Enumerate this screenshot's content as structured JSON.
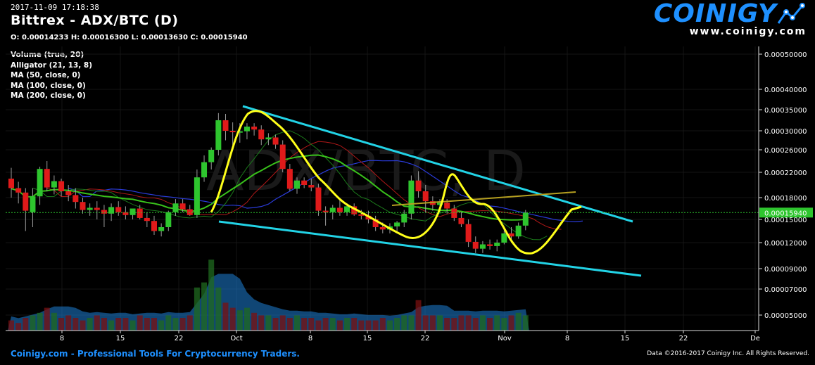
{
  "header": {
    "timestamp": "2017-11-09 17:18:38",
    "pair_title": "Bittrex - ADX/BTC (D)",
    "ohlc": "O: 0.00014233 H: 0.00016300 L: 0.00013630 C: 0.00015940",
    "indicators": [
      "Volume (true, 20)",
      "Alligator (21, 13, 8)",
      "MA (50, close, 0)",
      "MA (100, close, 0)",
      "MA (200, close, 0)"
    ]
  },
  "logo": {
    "word": "COINIGY",
    "url": "www.coinigy.com",
    "icon": "line-chart-icon"
  },
  "footer": {
    "left": "Coinigy.com - Professional Tools For Cryptocurrency Traders.",
    "right": "Data ©2016-2017 Coinigy Inc. All Rights Reserved."
  },
  "watermark": "ADX/BTC, D",
  "colors": {
    "up": "#2ec52e",
    "down": "#e01a1a",
    "trendline": "#22d3e6",
    "path": "#ffff1a",
    "ma50": "#39c21b",
    "ma100": "#2a3bd9",
    "ma200": "#b6a020",
    "price_label_bg": "#2ec52e",
    "volume_area": "#1e7fd6"
  },
  "chart_data": {
    "type": "candlestick",
    "y_ticks": [
      "0.00050000",
      "0.00040000",
      "0.00035000",
      "0.00030000",
      "0.00026000",
      "0.00022000",
      "0.00018000",
      "0.00015000",
      "0.00012000",
      "0.00009000",
      "0.00007000",
      "0.00005000"
    ],
    "x_ticks": [
      "8",
      "15",
      "22",
      "Oct",
      "8",
      "15",
      "22",
      "Nov",
      "8",
      "15",
      "22",
      "De"
    ],
    "last_price": "0.00015940",
    "candles": [
      {
        "o": 0.00021,
        "h": 0.000228,
        "l": 0.00018,
        "c": 0.000195
      },
      {
        "o": 0.000195,
        "h": 0.000205,
        "l": 0.000172,
        "c": 0.000188
      },
      {
        "o": 0.000188,
        "h": 0.000195,
        "l": 0.000135,
        "c": 0.000162
      },
      {
        "o": 0.00016,
        "h": 0.000195,
        "l": 0.00014,
        "c": 0.000182
      },
      {
        "o": 0.000182,
        "h": 0.00023,
        "l": 0.00017,
        "c": 0.000226
      },
      {
        "o": 0.000226,
        "h": 0.00024,
        "l": 0.00019,
        "c": 0.000196
      },
      {
        "o": 0.000196,
        "h": 0.000215,
        "l": 0.000185,
        "c": 0.000206
      },
      {
        "o": 0.000206,
        "h": 0.00021,
        "l": 0.000182,
        "c": 0.00019
      },
      {
        "o": 0.00019,
        "h": 0.0002,
        "l": 0.000175,
        "c": 0.000184
      },
      {
        "o": 0.000184,
        "h": 0.000195,
        "l": 0.000165,
        "c": 0.000174
      },
      {
        "o": 0.000174,
        "h": 0.00018,
        "l": 0.000158,
        "c": 0.000163
      },
      {
        "o": 0.000163,
        "h": 0.000172,
        "l": 0.000155,
        "c": 0.000166
      },
      {
        "o": 0.000166,
        "h": 0.000175,
        "l": 0.00015,
        "c": 0.000163
      },
      {
        "o": 0.000163,
        "h": 0.00017,
        "l": 0.00014,
        "c": 0.000158
      },
      {
        "o": 0.000158,
        "h": 0.000172,
        "l": 0.000148,
        "c": 0.000167
      },
      {
        "o": 0.000167,
        "h": 0.000175,
        "l": 0.000155,
        "c": 0.00016
      },
      {
        "o": 0.00016,
        "h": 0.000168,
        "l": 0.00015,
        "c": 0.000156
      },
      {
        "o": 0.000156,
        "h": 0.000165,
        "l": 0.00015,
        "c": 0.000165
      },
      {
        "o": 0.000165,
        "h": 0.00017,
        "l": 0.00015,
        "c": 0.000152
      },
      {
        "o": 0.000152,
        "h": 0.00016,
        "l": 0.00014,
        "c": 0.000148
      },
      {
        "o": 0.000148,
        "h": 0.000155,
        "l": 0.00013,
        "c": 0.000135
      },
      {
        "o": 0.000135,
        "h": 0.000145,
        "l": 0.000128,
        "c": 0.00014
      },
      {
        "o": 0.00014,
        "h": 0.000162,
        "l": 0.000135,
        "c": 0.00016
      },
      {
        "o": 0.00016,
        "h": 0.000178,
        "l": 0.000155,
        "c": 0.000172
      },
      {
        "o": 0.000172,
        "h": 0.000178,
        "l": 0.00016,
        "c": 0.000164
      },
      {
        "o": 0.000164,
        "h": 0.00017,
        "l": 0.000155,
        "c": 0.000156
      },
      {
        "o": 0.000156,
        "h": 0.000225,
        "l": 0.000152,
        "c": 0.000212
      },
      {
        "o": 0.000212,
        "h": 0.00025,
        "l": 0.000205,
        "c": 0.000238
      },
      {
        "o": 0.000238,
        "h": 0.000265,
        "l": 0.000225,
        "c": 0.00026
      },
      {
        "o": 0.00026,
        "h": 0.000342,
        "l": 0.00025,
        "c": 0.000325
      },
      {
        "o": 0.000325,
        "h": 0.00034,
        "l": 0.00028,
        "c": 0.0003
      },
      {
        "o": 0.0003,
        "h": 0.00032,
        "l": 0.00027,
        "c": 0.000297
      },
      {
        "o": 0.000297,
        "h": 0.000318,
        "l": 0.000275,
        "c": 0.000299
      },
      {
        "o": 0.000299,
        "h": 0.000318,
        "l": 0.000282,
        "c": 0.00031
      },
      {
        "o": 0.00031,
        "h": 0.000318,
        "l": 0.00029,
        "c": 0.000303
      },
      {
        "o": 0.000303,
        "h": 0.000313,
        "l": 0.00027,
        "c": 0.000282
      },
      {
        "o": 0.000282,
        "h": 0.000295,
        "l": 0.00027,
        "c": 0.000286
      },
      {
        "o": 0.000286,
        "h": 0.000292,
        "l": 0.000262,
        "c": 0.000271
      },
      {
        "o": 0.000271,
        "h": 0.00028,
        "l": 0.00022,
        "c": 0.000226
      },
      {
        "o": 0.000226,
        "h": 0.000235,
        "l": 0.00019,
        "c": 0.000194
      },
      {
        "o": 0.000194,
        "h": 0.000212,
        "l": 0.000186,
        "c": 0.000207
      },
      {
        "o": 0.000207,
        "h": 0.000212,
        "l": 0.000195,
        "c": 0.0002
      },
      {
        "o": 0.0002,
        "h": 0.00021,
        "l": 0.00019,
        "c": 0.000196
      },
      {
        "o": 0.000196,
        "h": 0.000202,
        "l": 0.000155,
        "c": 0.000162
      },
      {
        "o": 0.000162,
        "h": 0.000168,
        "l": 0.000142,
        "c": 0.00016
      },
      {
        "o": 0.00016,
        "h": 0.00017,
        "l": 0.00015,
        "c": 0.000166
      },
      {
        "o": 0.000166,
        "h": 0.000178,
        "l": 0.000155,
        "c": 0.00016
      },
      {
        "o": 0.00016,
        "h": 0.000172,
        "l": 0.000155,
        "c": 0.000168
      },
      {
        "o": 0.000168,
        "h": 0.000172,
        "l": 0.000155,
        "c": 0.000157
      },
      {
        "o": 0.000157,
        "h": 0.000163,
        "l": 0.00015,
        "c": 0.000155
      },
      {
        "o": 0.000155,
        "h": 0.000162,
        "l": 0.000145,
        "c": 0.00015
      },
      {
        "o": 0.00015,
        "h": 0.000155,
        "l": 0.000135,
        "c": 0.00014
      },
      {
        "o": 0.00014,
        "h": 0.000146,
        "l": 0.000132,
        "c": 0.000137
      },
      {
        "o": 0.000137,
        "h": 0.000145,
        "l": 0.000132,
        "c": 0.000141
      },
      {
        "o": 0.000141,
        "h": 0.000148,
        "l": 0.000135,
        "c": 0.000146
      },
      {
        "o": 0.000146,
        "h": 0.000163,
        "l": 0.00014,
        "c": 0.000158
      },
      {
        "o": 0.000158,
        "h": 0.000215,
        "l": 0.00015,
        "c": 0.000207
      },
      {
        "o": 0.000207,
        "h": 0.000222,
        "l": 0.00018,
        "c": 0.00019
      },
      {
        "o": 0.00019,
        "h": 0.0002,
        "l": 0.00016,
        "c": 0.000175
      },
      {
        "o": 0.000175,
        "h": 0.000182,
        "l": 0.000162,
        "c": 0.00017
      },
      {
        "o": 0.00017,
        "h": 0.000178,
        "l": 0.00016,
        "c": 0.000173
      },
      {
        "o": 0.000173,
        "h": 0.000178,
        "l": 0.000158,
        "c": 0.000165
      },
      {
        "o": 0.000165,
        "h": 0.00017,
        "l": 0.000148,
        "c": 0.000152
      },
      {
        "o": 0.000152,
        "h": 0.00016,
        "l": 0.00014,
        "c": 0.000144
      },
      {
        "o": 0.000144,
        "h": 0.00015,
        "l": 0.000115,
        "c": 0.000121
      },
      {
        "o": 0.000121,
        "h": 0.000128,
        "l": 0.000108,
        "c": 0.000113
      },
      {
        "o": 0.000113,
        "h": 0.000122,
        "l": 0.000108,
        "c": 0.000118
      },
      {
        "o": 0.000118,
        "h": 0.000124,
        "l": 0.000112,
        "c": 0.000116
      },
      {
        "o": 0.000116,
        "h": 0.000124,
        "l": 0.00011,
        "c": 0.00012
      },
      {
        "o": 0.00012,
        "h": 0.000136,
        "l": 0.000118,
        "c": 0.000132
      },
      {
        "o": 0.000132,
        "h": 0.00014,
        "l": 0.00012,
        "c": 0.000128
      },
      {
        "o": 0.000128,
        "h": 0.000146,
        "l": 0.000125,
        "c": 0.000142
      },
      {
        "o": 0.000142,
        "h": 0.000163,
        "l": 0.000136,
        "c": 0.000159
      }
    ],
    "volume": [
      0.4,
      0.3,
      0.5,
      0.6,
      0.7,
      0.9,
      0.7,
      0.5,
      0.6,
      0.5,
      0.4,
      0.5,
      0.6,
      0.5,
      0.4,
      0.5,
      0.5,
      0.4,
      0.6,
      0.5,
      0.5,
      0.4,
      0.6,
      0.5,
      0.5,
      0.6,
      1.7,
      1.9,
      2.8,
      1.7,
      1.1,
      0.9,
      0.8,
      0.9,
      0.7,
      0.6,
      0.6,
      0.5,
      0.6,
      0.5,
      0.6,
      0.5,
      0.5,
      0.4,
      0.5,
      0.5,
      0.4,
      0.5,
      0.5,
      0.4,
      0.4,
      0.4,
      0.5,
      0.4,
      0.5,
      0.6,
      0.6,
      1.2,
      0.6,
      0.6,
      0.6,
      0.5,
      0.5,
      0.6,
      0.6,
      0.5,
      0.6,
      0.5,
      0.6,
      0.5,
      0.6,
      0.7,
      0.6
    ],
    "y_range": [
      4e-05,
      0.00052
    ],
    "volume_axis": "overlay-bottom"
  }
}
